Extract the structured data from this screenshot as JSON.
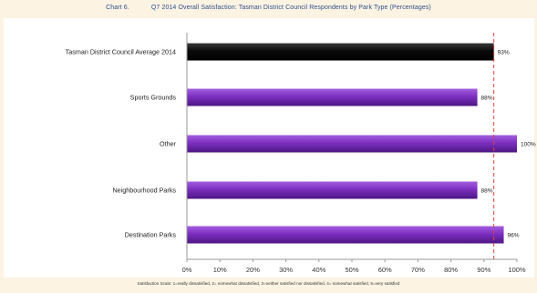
{
  "header": {
    "chart_label": "Chart 6.",
    "title": "Q7 2014 Overall Satisfaction: Tasman District Council Respondents by Park Type (Percentages)"
  },
  "footnote": "Satisfaction Scale: 1=really dissatisfied, 2= somewhat dissatisfied, 3=neither satisfied nor dissatisfied, 4= somewhat satisfied, 5=very satisfied",
  "colors": {
    "highlight_bar": "#0a0a0a",
    "series_bar": "#7d2fc0",
    "reference_line": "#e0433a",
    "axis": "#999999"
  },
  "chart_data": {
    "type": "bar",
    "orientation": "horizontal",
    "title": "Q7 2014 Overall Satisfaction: Tasman District Council Respondents by Park Type (Percentages)",
    "categories": [
      "Tasman District Council Average 2014",
      "Sports Grounds",
      "Other",
      "Neighbourhood Parks",
      "Destination Parks"
    ],
    "values": [
      93,
      88,
      100,
      88,
      96
    ],
    "value_labels": [
      "93%",
      "88%",
      "100%",
      "88%",
      "96%"
    ],
    "highlight": [
      true,
      false,
      false,
      false,
      false
    ],
    "reference_line": 93,
    "xlim": [
      0,
      100
    ],
    "xticks": [
      0,
      10,
      20,
      30,
      40,
      50,
      60,
      70,
      80,
      90,
      100
    ],
    "xtick_labels": [
      "0%",
      "10%",
      "20%",
      "30%",
      "40%",
      "50%",
      "60%",
      "70%",
      "80%",
      "90%",
      "100%"
    ],
    "grid": false,
    "legend": "none"
  }
}
